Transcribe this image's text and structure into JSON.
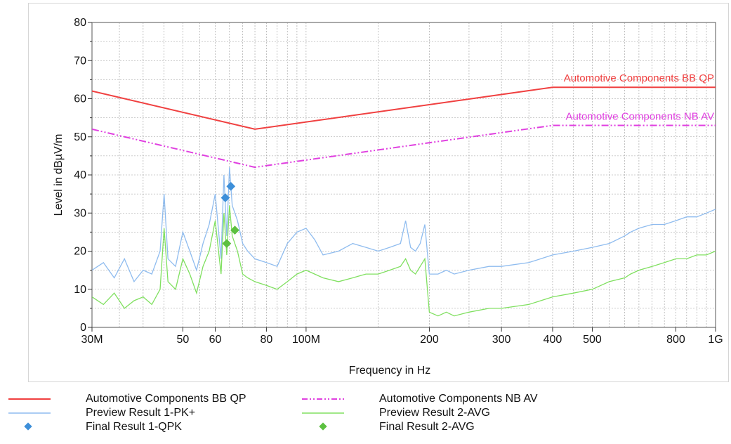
{
  "chart_data": {
    "type": "line",
    "xlabel": "Frequency in Hz",
    "ylabel": "Level in dBµV/m",
    "x_scale": "log",
    "xlim": [
      30,
      1000
    ],
    "ylim": [
      0,
      80
    ],
    "grid": true,
    "legend_placement": "bottom",
    "x_ticks": [
      {
        "value": 30,
        "label": "30M"
      },
      {
        "value": 50,
        "label": "50"
      },
      {
        "value": 60,
        "label": "60"
      },
      {
        "value": 80,
        "label": "80"
      },
      {
        "value": 100,
        "label": "100M"
      },
      {
        "value": 200,
        "label": "200"
      },
      {
        "value": 300,
        "label": "300"
      },
      {
        "value": 400,
        "label": "400"
      },
      {
        "value": 500,
        "label": "500"
      },
      {
        "value": 800,
        "label": "800"
      },
      {
        "value": 1000,
        "label": "1G"
      }
    ],
    "y_ticks": [
      0,
      10,
      20,
      30,
      40,
      50,
      60,
      70,
      80
    ],
    "series": [
      {
        "name": "Automotive Components BB QP",
        "kind": "limit",
        "color": "#f04040",
        "dash": "solid",
        "label_on_chart": "Automotive Components BB QP",
        "x": [
          30,
          75,
          400,
          1000
        ],
        "y": [
          62,
          52,
          63,
          63
        ]
      },
      {
        "name": "Automotive Components NB AV",
        "kind": "limit",
        "color": "#e040e0",
        "dash": "dash-dot-dot",
        "label_on_chart": "Automotive Components NB AV",
        "x": [
          30,
          75,
          400,
          1000
        ],
        "y": [
          52,
          42,
          53,
          53
        ]
      },
      {
        "name": "Preview Result 1-PK+",
        "kind": "trace",
        "color": "#8fbcef",
        "x": [
          30,
          32,
          34,
          36,
          38,
          40,
          42,
          44,
          45,
          46,
          48,
          50,
          52,
          54,
          56,
          58,
          60,
          62,
          63,
          64,
          65,
          66,
          68,
          70,
          72,
          75,
          80,
          85,
          90,
          95,
          100,
          105,
          110,
          120,
          130,
          140,
          150,
          160,
          170,
          175,
          180,
          185,
          190,
          195,
          200,
          210,
          220,
          230,
          250,
          280,
          300,
          350,
          400,
          450,
          500,
          550,
          600,
          620,
          650,
          700,
          750,
          800,
          850,
          900,
          950,
          1000
        ],
        "y": [
          15,
          17,
          13,
          18,
          12,
          15,
          14,
          20,
          35,
          18,
          16,
          25,
          20,
          15,
          22,
          27,
          35,
          18,
          40,
          24,
          42,
          32,
          28,
          22,
          20,
          18,
          17,
          16,
          22,
          25,
          26,
          23,
          19,
          20,
          22,
          21,
          20,
          21,
          22,
          28,
          21,
          20,
          22,
          27,
          14,
          14,
          15,
          14,
          15,
          16,
          16,
          17,
          19,
          20,
          21,
          22,
          24,
          25,
          26,
          27,
          27,
          28,
          29,
          29,
          30,
          31
        ]
      },
      {
        "name": "Preview Result 2-AVG",
        "kind": "trace",
        "color": "#80e060",
        "x": [
          30,
          32,
          34,
          36,
          38,
          40,
          42,
          44,
          45,
          46,
          48,
          50,
          52,
          54,
          56,
          58,
          60,
          62,
          63,
          64,
          65,
          66,
          68,
          70,
          72,
          75,
          80,
          85,
          90,
          95,
          100,
          110,
          120,
          130,
          140,
          150,
          160,
          170,
          175,
          180,
          185,
          190,
          195,
          200,
          210,
          220,
          230,
          250,
          280,
          300,
          350,
          400,
          450,
          500,
          550,
          600,
          620,
          650,
          700,
          750,
          800,
          850,
          900,
          950,
          1000
        ],
        "y": [
          8,
          6,
          9,
          5,
          7,
          8,
          6,
          10,
          26,
          12,
          10,
          18,
          14,
          9,
          16,
          20,
          28,
          14,
          30,
          19,
          32,
          24,
          20,
          14,
          13,
          12,
          11,
          10,
          12,
          14,
          15,
          13,
          12,
          13,
          14,
          14,
          15,
          16,
          18,
          15,
          14,
          16,
          18,
          4,
          3,
          4,
          3,
          4,
          5,
          5,
          6,
          8,
          9,
          10,
          12,
          13,
          14,
          15,
          16,
          17,
          18,
          18,
          19,
          19,
          20
        ]
      },
      {
        "name": "Final Result 1-QPK",
        "kind": "markers",
        "color": "#3d8fd9",
        "marker": "diamond",
        "x": [
          63.5,
          65.5
        ],
        "y": [
          34,
          37
        ]
      },
      {
        "name": "Final Result 2-AVG",
        "kind": "markers",
        "color": "#5cc040",
        "marker": "diamond",
        "x": [
          64,
          67
        ],
        "y": [
          22,
          25.5
        ]
      }
    ]
  },
  "legend": [
    {
      "label": "Automotive Components BB QP",
      "color": "#f04040",
      "style": "line"
    },
    {
      "label": "Automotive Components NB AV",
      "color": "#e040e0",
      "style": "dashdot"
    },
    {
      "label": "Preview Result 1-PK+",
      "color": "#8fbcef",
      "style": "line"
    },
    {
      "label": "Preview Result 2-AVG",
      "color": "#80e060",
      "style": "line"
    },
    {
      "label": "Final Result 1-QPK",
      "color": "#3d8fd9",
      "style": "diamond"
    },
    {
      "label": "Final Result 2-AVG",
      "color": "#5cc040",
      "style": "diamond"
    }
  ]
}
